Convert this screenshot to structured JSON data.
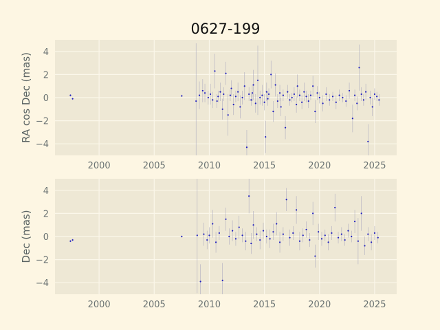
{
  "title": "0627-199",
  "colors": {
    "figure_bg": "#fdf6e3",
    "axes_bg": "#eee8d5",
    "grid": "#fbf7ea",
    "marker": "#1f1fbf",
    "errorbar": "#9a9ab8"
  },
  "chart_data": [
    {
      "type": "scatter",
      "title": "0627-199",
      "xlabel": "",
      "ylabel": "RA cos Dec (mas)",
      "xlim": [
        1996,
        2027
      ],
      "ylim": [
        -5,
        5
      ],
      "xticks": [
        2000,
        2005,
        2010,
        2015,
        2020,
        2025
      ],
      "yticks": [
        4,
        2,
        0,
        -2,
        -4
      ],
      "grid": true,
      "x": [
        1997.4,
        1997.6,
        2007.5,
        2008.8,
        2009.1,
        2009.4,
        2009.6,
        2009.9,
        2010.1,
        2010.3,
        2010.5,
        2010.7,
        2010.8,
        2011.0,
        2011.2,
        2011.3,
        2011.5,
        2011.7,
        2011.9,
        2012.0,
        2012.2,
        2012.4,
        2012.6,
        2012.8,
        2013.0,
        2013.2,
        2013.4,
        2013.6,
        2013.8,
        2013.9,
        2014.0,
        2014.2,
        2014.4,
        2014.6,
        2014.8,
        2015.0,
        2015.1,
        2015.2,
        2015.3,
        2015.4,
        2015.6,
        2015.8,
        2016.0,
        2016.2,
        2016.4,
        2016.5,
        2016.7,
        2016.9,
        2017.1,
        2017.3,
        2017.5,
        2017.7,
        2017.9,
        2018.0,
        2018.2,
        2018.4,
        2018.6,
        2018.8,
        2019.0,
        2019.2,
        2019.4,
        2019.6,
        2019.8,
        2020.0,
        2020.3,
        2020.6,
        2020.9,
        2021.2,
        2021.5,
        2021.8,
        2022.1,
        2022.4,
        2022.7,
        2023.0,
        2023.2,
        2023.4,
        2023.6,
        2023.8,
        2024.0,
        2024.2,
        2024.4,
        2024.6,
        2024.8,
        2025.0,
        2025.2,
        2025.4
      ],
      "y": [
        0.2,
        -0.1,
        0.15,
        -0.3,
        0.2,
        0.6,
        0.4,
        0.0,
        0.3,
        -0.2,
        2.3,
        -0.3,
        0.1,
        0.5,
        -1.0,
        0.3,
        2.1,
        -1.5,
        0.2,
        0.8,
        -0.6,
        0.1,
        0.5,
        -0.8,
        0.0,
        1.0,
        -4.3,
        0.3,
        -0.2,
        0.4,
        1.1,
        -0.5,
        1.5,
        0.0,
        0.2,
        -0.4,
        -3.4,
        0.5,
        -0.1,
        0.3,
        2.0,
        -1.2,
        1.1,
        -0.3,
        0.4,
        -0.8,
        0.2,
        -2.6,
        0.5,
        -0.2,
        0.0,
        0.3,
        -0.6,
        1.0,
        0.2,
        -0.4,
        0.5,
        0.1,
        -0.3,
        0.2,
        1.0,
        -1.2,
        0.4,
        0.0,
        -0.5,
        0.3,
        -0.2,
        0.1,
        -0.4,
        0.2,
        0.0,
        -0.3,
        0.6,
        -1.8,
        0.2,
        -0.5,
        2.6,
        0.3,
        -0.2,
        0.5,
        -3.8,
        0.0,
        -0.8,
        0.3,
        0.1,
        -0.2
      ],
      "yerr": [
        0.1,
        0.1,
        0.1,
        5,
        1.2,
        1.0,
        0.8,
        0.6,
        0.9,
        0.7,
        1.5,
        0.6,
        0.5,
        0.8,
        0.9,
        0.6,
        1.0,
        1.8,
        0.5,
        0.7,
        0.9,
        0.5,
        0.8,
        1.0,
        0.6,
        1.2,
        1.5,
        0.6,
        0.5,
        0.7,
        1.3,
        0.8,
        3.0,
        0.6,
        0.9,
        0.7,
        1.4,
        0.8,
        0.6,
        0.5,
        1.2,
        0.9,
        1.0,
        0.6,
        0.7,
        0.8,
        0.5,
        1.0,
        0.6,
        0.5,
        0.4,
        0.6,
        0.7,
        1.0,
        0.5,
        0.6,
        0.8,
        0.5,
        0.6,
        0.4,
        0.9,
        1.0,
        0.6,
        0.5,
        0.7,
        0.6,
        0.5,
        0.4,
        0.6,
        0.5,
        0.4,
        0.5,
        0.7,
        1.2,
        0.5,
        0.6,
        2.0,
        0.6,
        0.5,
        0.7,
        1.5,
        0.6,
        0.8,
        0.5,
        0.4,
        0.5
      ]
    },
    {
      "type": "scatter",
      "title": "",
      "xlabel": "",
      "ylabel": "Dec (mas)",
      "xlim": [
        1996,
        2027
      ],
      "ylim": [
        -5,
        5
      ],
      "xticks": [
        2000,
        2005,
        2010,
        2015,
        2020,
        2025
      ],
      "yticks": [
        4,
        2,
        0,
        -2,
        -4
      ],
      "grid": true,
      "x": [
        1997.4,
        1997.6,
        2007.5,
        2008.9,
        2009.2,
        2009.5,
        2009.8,
        2010.0,
        2010.3,
        2010.6,
        2010.9,
        2011.2,
        2011.5,
        2011.8,
        2012.1,
        2012.4,
        2012.7,
        2013.0,
        2013.3,
        2013.6,
        2013.8,
        2014.0,
        2014.3,
        2014.6,
        2014.9,
        2015.2,
        2015.5,
        2015.8,
        2016.1,
        2016.4,
        2016.7,
        2017.0,
        2017.3,
        2017.6,
        2017.9,
        2018.2,
        2018.5,
        2018.8,
        2019.1,
        2019.4,
        2019.6,
        2019.9,
        2020.2,
        2020.5,
        2020.8,
        2021.1,
        2021.4,
        2021.7,
        2022.0,
        2022.3,
        2022.6,
        2022.9,
        2023.2,
        2023.5,
        2023.8,
        2024.1,
        2024.4,
        2024.7,
        2025.0,
        2025.3
      ],
      "y": [
        -0.4,
        -0.3,
        0.0,
        0.1,
        -3.9,
        0.2,
        -0.3,
        0.1,
        1.1,
        -0.5,
        0.3,
        -3.8,
        1.5,
        0.0,
        0.5,
        -0.2,
        0.8,
        0.1,
        -0.4,
        3.5,
        -0.6,
        1.0,
        0.2,
        -0.3,
        0.5,
        0.0,
        -0.2,
        0.4,
        1.1,
        -0.5,
        0.2,
        3.2,
        -0.1,
        0.3,
        2.3,
        -0.4,
        0.1,
        0.6,
        -0.3,
        2.0,
        -1.7,
        0.4,
        -0.2,
        0.1,
        -0.5,
        0.3,
        2.5,
        -0.1,
        0.2,
        -0.3,
        0.5,
        0.0,
        1.3,
        -0.4,
        2.0,
        -0.8,
        0.2,
        -0.5,
        0.3,
        -0.1
      ],
      "yerr": [
        0.1,
        0.1,
        0.1,
        5,
        1.5,
        1.0,
        0.8,
        0.7,
        1.2,
        0.9,
        0.6,
        1.5,
        1.0,
        0.7,
        0.9,
        0.6,
        1.0,
        0.6,
        0.8,
        1.5,
        0.9,
        1.2,
        0.6,
        0.8,
        0.7,
        0.6,
        0.8,
        0.7,
        1.0,
        0.9,
        0.6,
        1.0,
        0.7,
        0.6,
        1.2,
        0.8,
        0.6,
        0.7,
        0.6,
        1.0,
        1.0,
        0.7,
        0.6,
        0.5,
        0.7,
        0.6,
        1.2,
        0.5,
        0.6,
        0.5,
        0.6,
        0.5,
        1.0,
        2.0,
        1.5,
        0.8,
        0.6,
        0.7,
        0.6,
        0.5
      ]
    }
  ]
}
